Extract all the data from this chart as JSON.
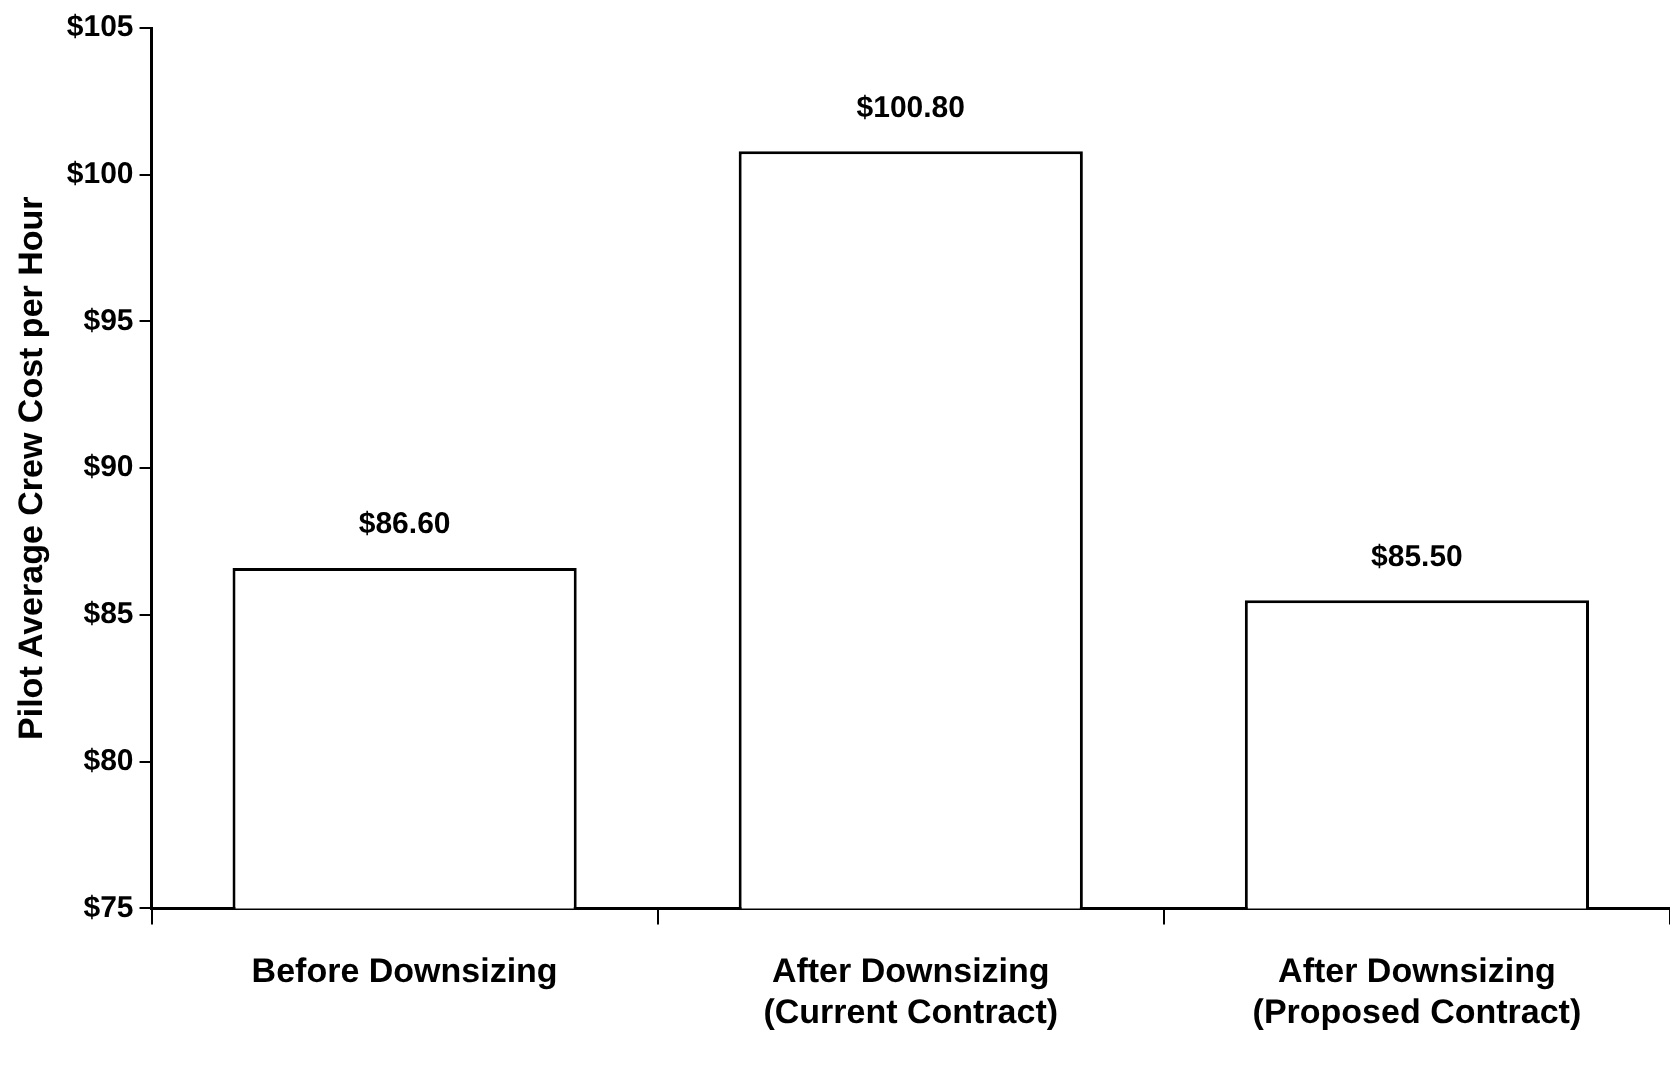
{
  "chart_data": {
    "type": "bar",
    "ylabel": "Pilot Average Crew Cost per Hour",
    "categories": [
      "Before Downsizing",
      "After Downsizing\n(Current Contract)",
      "After Downsizing\n(Proposed Contract)"
    ],
    "values": [
      86.6,
      100.8,
      85.5
    ],
    "color": "#ffffff",
    "value_labels": [
      "$86.60",
      "$100.80",
      "$85.50"
    ],
    "ylim": [
      75,
      105
    ],
    "yticks": [
      {
        "value": 75,
        "label": "$75"
      },
      {
        "value": 80,
        "label": "$80"
      },
      {
        "value": 85,
        "label": "$85"
      },
      {
        "value": 90,
        "label": "$90"
      },
      {
        "value": 95,
        "label": "$95"
      },
      {
        "value": 100,
        "label": "$100"
      },
      {
        "value": 105,
        "label": "$105"
      }
    ],
    "grid": false
  }
}
